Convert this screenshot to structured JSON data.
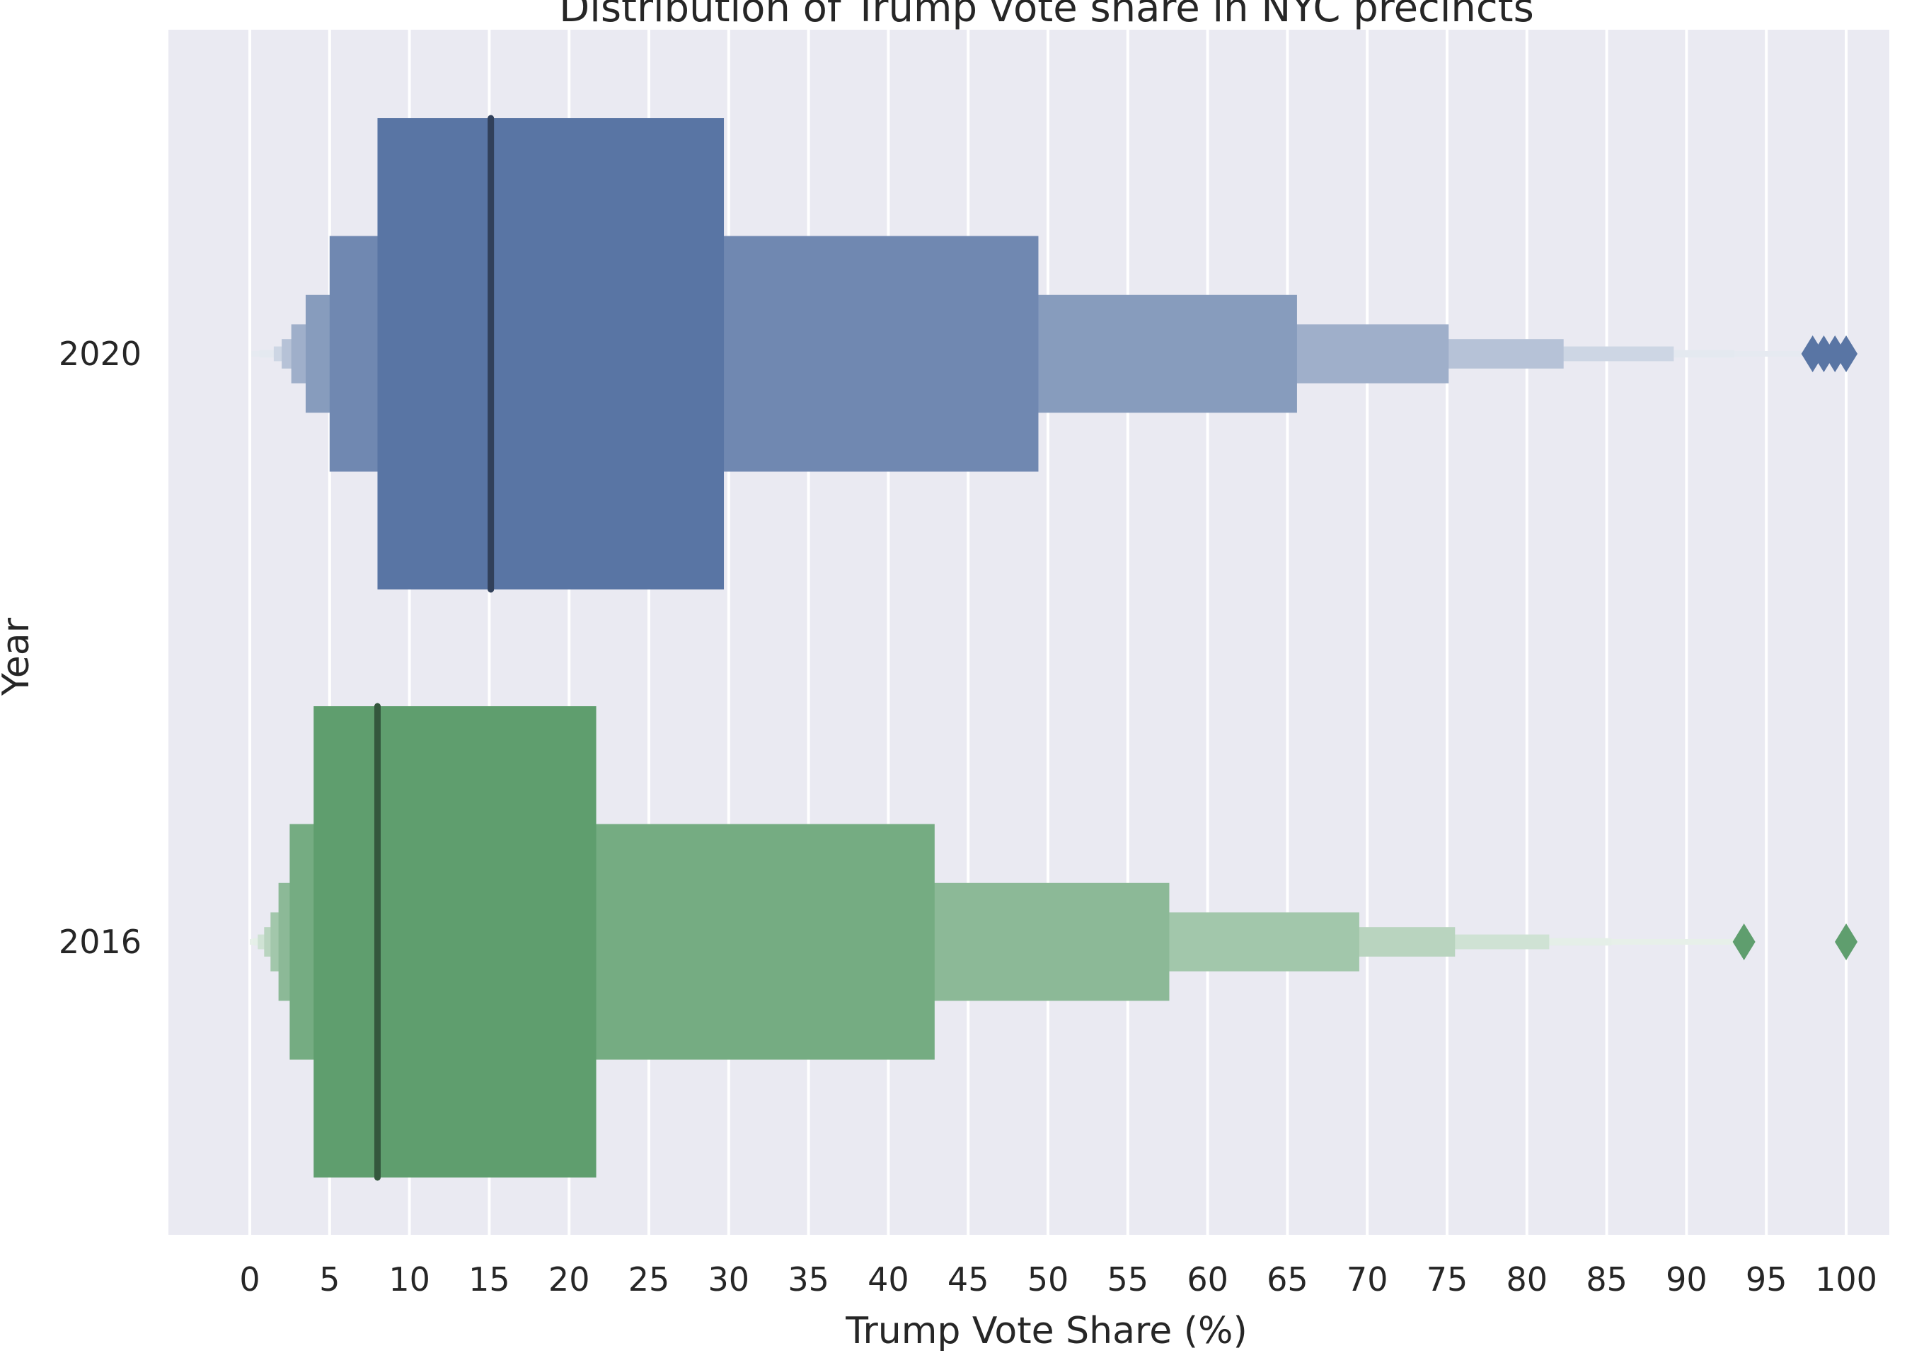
{
  "chart_data": {
    "type": "boxenplot",
    "title": "Distribution of Trump vote share in NYC precincts",
    "xlabel": "Trump Vote Share (%)",
    "ylabel": "Year",
    "xlim": [
      -5,
      105
    ],
    "x_ticks": [
      0,
      5,
      10,
      15,
      20,
      25,
      30,
      35,
      40,
      45,
      50,
      55,
      60,
      65,
      70,
      75,
      80,
      85,
      90,
      95,
      100
    ],
    "grid": "vertical",
    "background_color": "#eaeaf2",
    "categories": [
      "2020",
      "2016"
    ],
    "series": [
      {
        "category": "2020",
        "color": "#5975a4",
        "median": 15.1,
        "boxes": [
          {
            "low": 8.0,
            "high": 29.7
          },
          {
            "low": 5.0,
            "high": 49.4
          },
          {
            "low": 3.5,
            "high": 65.6
          },
          {
            "low": 2.6,
            "high": 75.1
          },
          {
            "low": 2.0,
            "high": 82.3
          },
          {
            "low": 1.5,
            "high": 89.2
          },
          {
            "low": 0.6,
            "high": 93.0
          },
          {
            "low": 0.1,
            "high": 97.2
          }
        ],
        "outliers": [
          97.9,
          98.6,
          99.3,
          100.0
        ]
      },
      {
        "category": "2016",
        "color": "#5f9e6e",
        "median": 8.0,
        "boxes": [
          {
            "low": 4.0,
            "high": 21.7
          },
          {
            "low": 2.5,
            "high": 42.9
          },
          {
            "low": 1.8,
            "high": 57.6
          },
          {
            "low": 1.3,
            "high": 69.5
          },
          {
            "low": 0.9,
            "high": 75.5
          },
          {
            "low": 0.5,
            "high": 81.4
          },
          {
            "low": 0.2,
            "high": 85.3
          },
          {
            "low": 0.05,
            "high": 89.4
          },
          {
            "low": 0.0,
            "high": 93.3
          }
        ],
        "outliers": [
          93.6,
          100.0
        ]
      }
    ]
  }
}
